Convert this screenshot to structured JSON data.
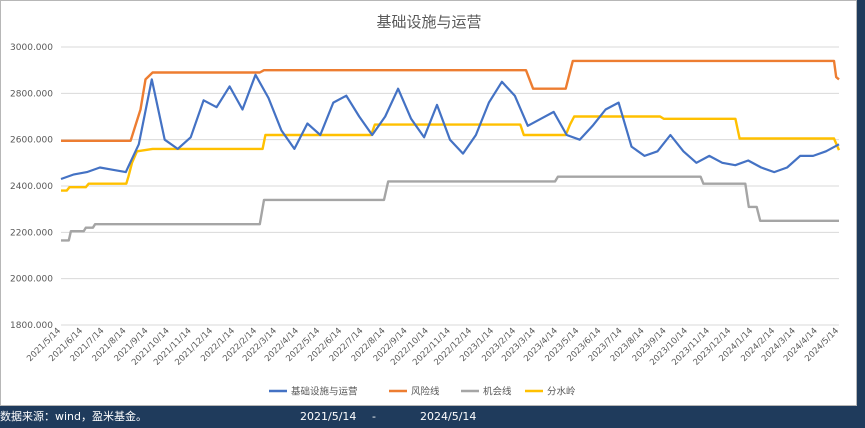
{
  "chart_data": {
    "type": "line",
    "title": "基础设施与运营",
    "ylim": [
      1800,
      3000
    ],
    "yticks": [
      "1800.000",
      "2000.000",
      "2200.000",
      "2400.000",
      "2600.000",
      "2800.000",
      "3000.000"
    ],
    "ytick_values": [
      1800,
      2000,
      2200,
      2400,
      2600,
      2800,
      3000
    ],
    "grid": true,
    "legend_position": "bottom",
    "x_start": "2021/5/14",
    "x_end": "2024/5/14",
    "xticks": [
      "2021/5/14",
      "2021/6/14",
      "2021/7/14",
      "2021/8/14",
      "2021/9/14",
      "2021/10/14",
      "2021/11/14",
      "2021/12/14",
      "2022/1/14",
      "2022/2/14",
      "2022/3/14",
      "2022/4/14",
      "2022/5/14",
      "2022/6/14",
      "2022/7/14",
      "2022/8/14",
      "2022/9/14",
      "2022/10/14",
      "2022/11/14",
      "2022/12/14",
      "2023/1/14",
      "2023/2/14",
      "2023/3/14",
      "2023/4/14",
      "2023/5/14",
      "2023/6/14",
      "2023/7/14",
      "2023/8/14",
      "2023/9/14",
      "2023/10/14",
      "2023/11/14",
      "2023/12/14",
      "2024/1/14",
      "2024/2/14",
      "2024/3/14",
      "2024/4/14",
      "2024/5/14"
    ],
    "series": [
      {
        "name": "基础设施与运营",
        "color": "#4472c4",
        "kind": "monthly",
        "values": [
          2430,
          2450,
          2460,
          2480,
          2470,
          2460,
          2580,
          2860,
          2600,
          2560,
          2610,
          2770,
          2740,
          2830,
          2730,
          2880,
          2780,
          2640,
          2560,
          2670,
          2620,
          2760,
          2790,
          2700,
          2620,
          2700,
          2820,
          2690,
          2610,
          2750,
          2600,
          2540,
          2620,
          2760,
          2850,
          2790,
          2660,
          2690,
          2720,
          2620,
          2600,
          2660,
          2730,
          2760,
          2570,
          2530,
          2550,
          2620,
          2550,
          2500,
          2530,
          2500,
          2490,
          2510,
          2480,
          2460,
          2480,
          2530,
          2530,
          2550,
          2580
        ]
      },
      {
        "name": "风险线",
        "color": "#ed7d31",
        "kind": "steps",
        "points": [
          [
            "2021/5/14",
            2595
          ],
          [
            "2021/8/20",
            2595
          ],
          [
            "2021/9/3",
            2730
          ],
          [
            "2021/9/10",
            2860
          ],
          [
            "2021/9/20",
            2890
          ],
          [
            "2022/2/18",
            2890
          ],
          [
            "2022/2/24",
            2900
          ],
          [
            "2023/2/28",
            2900
          ],
          [
            "2023/3/10",
            2820
          ],
          [
            "2023/4/25",
            2820
          ],
          [
            "2023/5/5",
            2940
          ],
          [
            "2024/5/7",
            2940
          ],
          [
            "2024/5/10",
            2870
          ],
          [
            "2024/5/14",
            2860
          ]
        ]
      },
      {
        "name": "机会线",
        "color": "#a5a5a5",
        "kind": "steps",
        "points": [
          [
            "2021/5/14",
            2165
          ],
          [
            "2021/5/25",
            2165
          ],
          [
            "2021/5/28",
            2205
          ],
          [
            "2021/6/15",
            2205
          ],
          [
            "2021/6/18",
            2220
          ],
          [
            "2021/6/28",
            2220
          ],
          [
            "2021/7/1",
            2235
          ],
          [
            "2022/2/18",
            2235
          ],
          [
            "2022/2/24",
            2340
          ],
          [
            "2022/8/12",
            2340
          ],
          [
            "2022/8/18",
            2420
          ],
          [
            "2023/4/10",
            2420
          ],
          [
            "2023/4/14",
            2440
          ],
          [
            "2023/11/1",
            2440
          ],
          [
            "2023/11/5",
            2410
          ],
          [
            "2024/1/3",
            2410
          ],
          [
            "2024/1/8",
            2310
          ],
          [
            "2024/1/19",
            2310
          ],
          [
            "2024/1/24",
            2250
          ],
          [
            "2024/5/14",
            2250
          ]
        ]
      },
      {
        "name": "分水岭",
        "color": "#ffc000",
        "kind": "steps",
        "points": [
          [
            "2021/5/14",
            2380
          ],
          [
            "2021/5/22",
            2380
          ],
          [
            "2021/5/26",
            2395
          ],
          [
            "2021/6/18",
            2395
          ],
          [
            "2021/6/22",
            2410
          ],
          [
            "2021/8/14",
            2410
          ],
          [
            "2021/8/17",
            2440
          ],
          [
            "2021/8/22",
            2500
          ],
          [
            "2021/8/29",
            2550
          ],
          [
            "2021/9/20",
            2560
          ],
          [
            "2022/2/22",
            2560
          ],
          [
            "2022/2/26",
            2620
          ],
          [
            "2022/7/25",
            2620
          ],
          [
            "2022/7/30",
            2665
          ],
          [
            "2023/2/20",
            2665
          ],
          [
            "2023/2/25",
            2620
          ],
          [
            "2023/4/25",
            2620
          ],
          [
            "2023/5/1",
            2665
          ],
          [
            "2023/5/7",
            2700
          ],
          [
            "2023/9/5",
            2700
          ],
          [
            "2023/9/10",
            2690
          ],
          [
            "2023/12/20",
            2690
          ],
          [
            "2023/12/26",
            2605
          ],
          [
            "2024/5/7",
            2605
          ],
          [
            "2024/5/14",
            2555
          ]
        ]
      }
    ]
  },
  "footer": {
    "source": "数据来源：wind，盈米基金。",
    "start_date": "2021/5/14",
    "separator": "-",
    "end_date": "2024/5/14"
  }
}
